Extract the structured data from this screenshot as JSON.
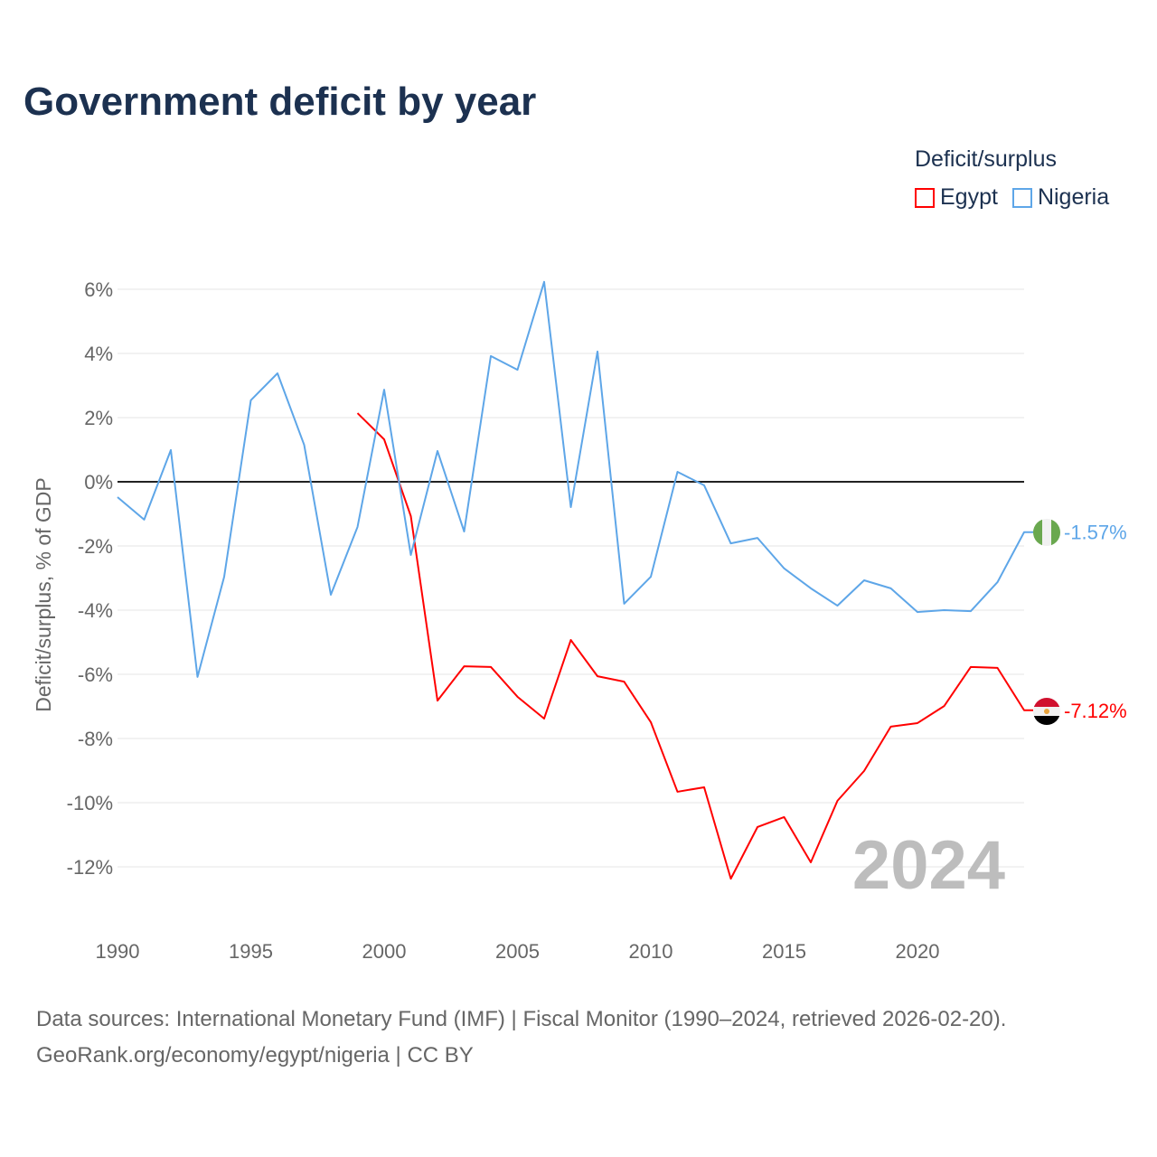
{
  "title": "Government deficit by year",
  "legend": {
    "title": "Deficit/surplus",
    "items": [
      {
        "name": "Egypt",
        "color": "#ff0000"
      },
      {
        "name": "Nigeria",
        "color": "#5ea6e8"
      }
    ]
  },
  "source": {
    "line1": "Data sources: International Monetary Fund (IMF) | Fiscal Monitor (1990–2024, retrieved 2026-02-20).",
    "line2": "GeoRank.org/economy/egypt/nigeria | CC BY"
  },
  "chart_data": {
    "type": "line",
    "title": "Government deficit by year",
    "xlabel": "",
    "ylabel": "Deficit/surplus, % of GDP",
    "xlim": [
      1990,
      2024
    ],
    "ylim": [
      -13.5,
      6.5
    ],
    "x_ticks": [
      "1990",
      "1995",
      "2000",
      "2005",
      "2010",
      "2015",
      "2020"
    ],
    "y_ticks": [
      "6%",
      "4%",
      "2%",
      "0%",
      "-2%",
      "-4%",
      "-6%",
      "-8%",
      "-10%",
      "-12%"
    ],
    "y_tick_values": [
      6,
      4,
      2,
      0,
      -2,
      -4,
      -6,
      -8,
      -10,
      -12
    ],
    "year_watermark": "2024",
    "legend_position": "top-right",
    "series": [
      {
        "name": "Egypt",
        "color": "#ff0000",
        "end_label": "-7.12%",
        "start_year": 1999,
        "values": [
          2.14,
          1.32,
          -1.07,
          -6.82,
          -5.75,
          -5.77,
          -6.7,
          -7.38,
          -4.93,
          -6.06,
          -6.23,
          -7.49,
          -9.66,
          -9.52,
          -12.37,
          -10.76,
          -10.45,
          -11.86,
          -9.94,
          -9.01,
          -7.63,
          -7.52,
          -6.99,
          -5.77,
          -5.8,
          -7.12
        ]
      },
      {
        "name": "Nigeria",
        "color": "#5ea6e8",
        "end_label": "-1.57%",
        "start_year": 1990,
        "values": [
          -0.48,
          -1.18,
          0.99,
          -6.08,
          -2.96,
          2.54,
          3.38,
          1.15,
          -3.52,
          -1.41,
          2.87,
          -2.28,
          0.96,
          -1.55,
          3.92,
          3.49,
          6.23,
          -0.79,
          4.06,
          -3.8,
          -2.96,
          0.31,
          -0.11,
          -1.92,
          -1.75,
          -2.7,
          -3.32,
          -3.86,
          -3.07,
          -3.32,
          -4.06,
          -4.0,
          -4.03,
          -3.13,
          -1.57
        ]
      }
    ]
  }
}
